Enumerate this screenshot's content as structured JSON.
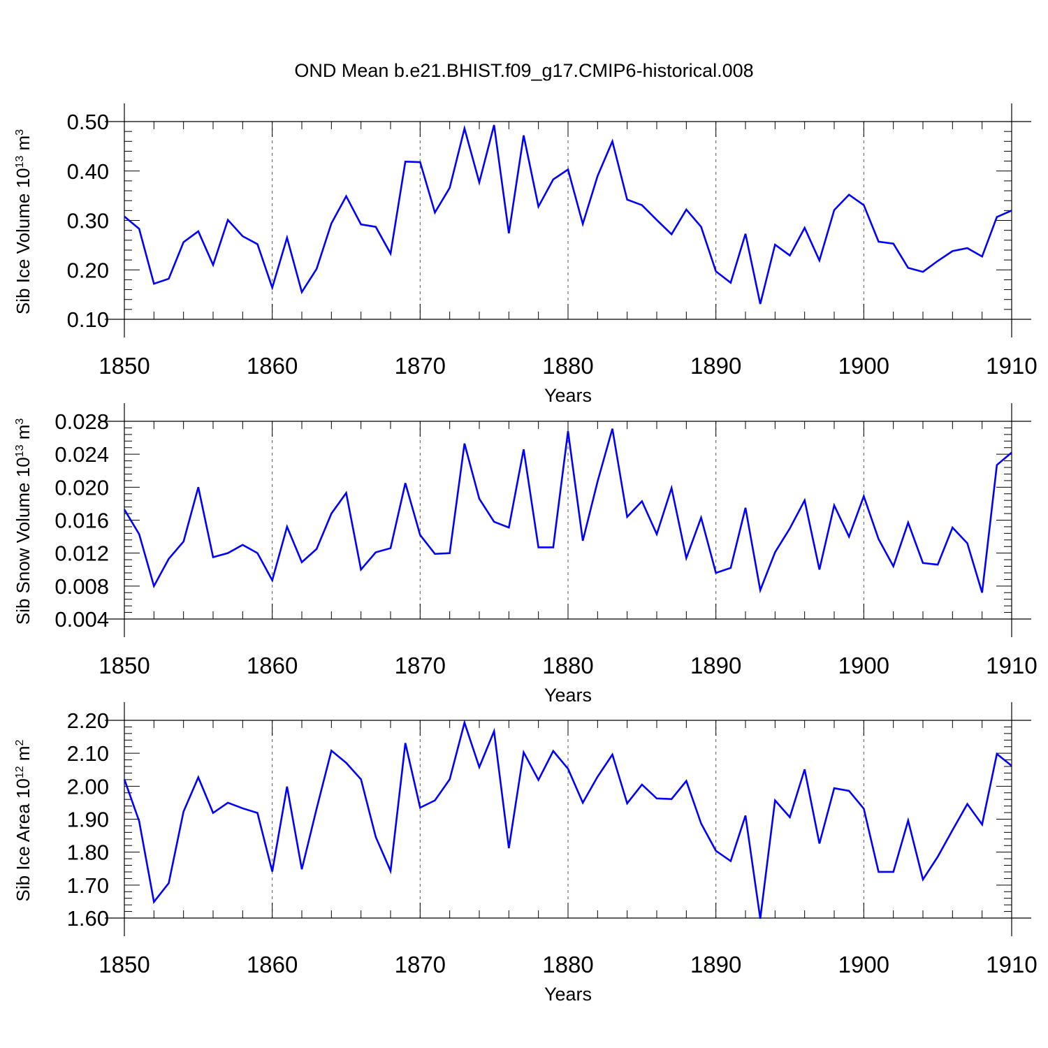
{
  "figure": {
    "title": "OND Mean b.e21.BHIST.f09_g17.CMIP6-historical.008"
  },
  "colors": {
    "line": "#0000ff",
    "axis": "#000000",
    "grid": "#000000"
  },
  "chart_data": [
    {
      "type": "line",
      "panel": "top",
      "xlabel": "Years",
      "ylabel_main": "Sib Ice Volume 10",
      "ylabel_exp": "13",
      "ylabel_unit": " m",
      "ylabel_unit_exp": "3",
      "xlim": [
        1850,
        1910
      ],
      "ylim": [
        0.1,
        0.5
      ],
      "x_ticks": [
        1850,
        1860,
        1870,
        1880,
        1890,
        1900,
        1910
      ],
      "x_tick_labels": [
        "1850",
        "1860",
        "1870",
        "1880",
        "1890",
        "1900",
        "1910"
      ],
      "y_ticks": [
        0.1,
        0.2,
        0.3,
        0.4,
        0.5
      ],
      "y_tick_labels": [
        "0.10",
        "0.20",
        "0.30",
        "0.40",
        "0.50"
      ],
      "x_start": 1850,
      "series": [
        {
          "name": "Sib Ice Volume",
          "values": [
            0.308,
            0.283,
            0.172,
            0.182,
            0.256,
            0.278,
            0.21,
            0.301,
            0.268,
            0.252,
            0.164,
            0.265,
            0.155,
            0.202,
            0.294,
            0.349,
            0.292,
            0.287,
            0.233,
            0.419,
            0.418,
            0.316,
            0.366,
            0.486,
            0.377,
            0.493,
            0.274,
            0.472,
            0.328,
            0.383,
            0.403,
            0.293,
            0.39,
            0.46,
            0.342,
            0.331,
            0.301,
            0.272,
            0.322,
            0.287,
            0.197,
            0.174,
            0.273,
            0.131,
            0.251,
            0.229,
            0.285,
            0.219,
            0.321,
            0.352,
            0.331,
            0.257,
            0.253,
            0.204,
            0.196,
            0.218,
            0.238,
            0.244,
            0.227,
            0.307,
            0.32
          ]
        }
      ]
    },
    {
      "type": "line",
      "panel": "middle",
      "xlabel": "Years",
      "ylabel_main": "Sib Snow Volume 10",
      "ylabel_exp": "13",
      "ylabel_unit": " m",
      "ylabel_unit_exp": "3",
      "xlim": [
        1850,
        1910
      ],
      "ylim": [
        0.004,
        0.028
      ],
      "x_ticks": [
        1850,
        1860,
        1870,
        1880,
        1890,
        1900,
        1910
      ],
      "x_tick_labels": [
        "1850",
        "1860",
        "1870",
        "1880",
        "1890",
        "1900",
        "1910"
      ],
      "y_ticks": [
        0.004,
        0.008,
        0.012,
        0.016,
        0.02,
        0.024,
        0.028
      ],
      "y_tick_labels": [
        "0.004",
        "0.008",
        "0.012",
        "0.016",
        "0.020",
        "0.024",
        "0.028"
      ],
      "x_start": 1850,
      "series": [
        {
          "name": "Sib Snow Volume",
          "values": [
            0.0173,
            0.0143,
            0.008,
            0.0113,
            0.0134,
            0.02,
            0.0115,
            0.012,
            0.013,
            0.012,
            0.0087,
            0.0152,
            0.0109,
            0.0125,
            0.0168,
            0.0193,
            0.01,
            0.0121,
            0.0126,
            0.0205,
            0.0142,
            0.0119,
            0.012,
            0.0253,
            0.0186,
            0.0158,
            0.0151,
            0.0246,
            0.0127,
            0.0127,
            0.0268,
            0.0135,
            0.0207,
            0.0271,
            0.0164,
            0.0183,
            0.0143,
            0.0199,
            0.0114,
            0.0163,
            0.0096,
            0.0102,
            0.0175,
            0.0075,
            0.0121,
            0.015,
            0.0184,
            0.01,
            0.0178,
            0.014,
            0.0189,
            0.0137,
            0.0104,
            0.0157,
            0.0108,
            0.0106,
            0.0151,
            0.0132,
            0.0072,
            0.0227,
            0.0242
          ]
        }
      ]
    },
    {
      "type": "line",
      "panel": "bottom",
      "xlabel": "Years",
      "ylabel_main": "Sib Ice Area 10",
      "ylabel_exp": "12",
      "ylabel_unit": " m",
      "ylabel_unit_exp": "2",
      "xlim": [
        1850,
        1910
      ],
      "ylim": [
        1.6,
        2.2
      ],
      "x_ticks": [
        1850,
        1860,
        1870,
        1880,
        1890,
        1900,
        1910
      ],
      "x_tick_labels": [
        "1850",
        "1860",
        "1870",
        "1880",
        "1890",
        "1900",
        "1910"
      ],
      "y_ticks": [
        1.6,
        1.7,
        1.8,
        1.9,
        2.0,
        2.1,
        2.2
      ],
      "y_tick_labels": [
        "1.60",
        "1.70",
        "1.80",
        "1.90",
        "2.00",
        "2.10",
        "2.20"
      ],
      "x_start": 1850,
      "series": [
        {
          "name": "Sib Ice Area",
          "values": [
            2.021,
            1.894,
            1.649,
            1.706,
            1.923,
            2.027,
            1.919,
            1.95,
            1.933,
            1.919,
            1.741,
            1.999,
            1.748,
            1.932,
            2.108,
            2.071,
            2.021,
            1.846,
            1.743,
            2.131,
            1.935,
            1.957,
            2.021,
            2.193,
            2.058,
            2.167,
            1.812,
            2.103,
            2.019,
            2.107,
            2.053,
            1.95,
            2.029,
            2.096,
            1.948,
            2.005,
            1.963,
            1.961,
            2.016,
            1.887,
            1.804,
            1.773,
            1.911,
            1.598,
            1.957,
            1.906,
            2.051,
            1.826,
            1.994,
            1.986,
            1.932,
            1.74,
            1.74,
            1.896,
            1.717,
            1.786,
            1.867,
            1.946,
            1.884,
            2.098,
            2.062
          ]
        }
      ]
    }
  ]
}
